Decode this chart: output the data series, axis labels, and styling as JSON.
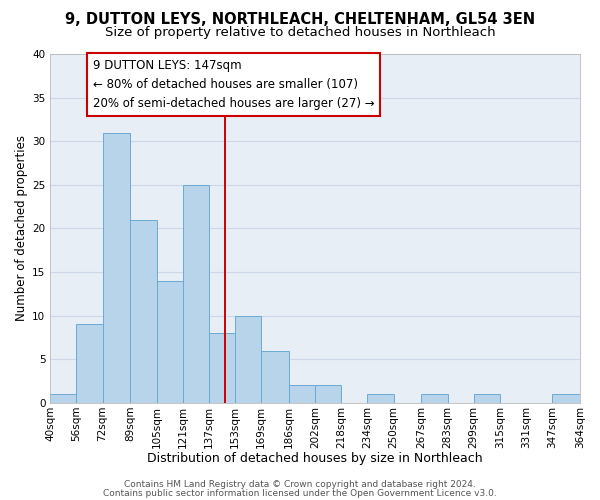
{
  "title_line1": "9, DUTTON LEYS, NORTHLEACH, CHELTENHAM, GL54 3EN",
  "title_line2": "Size of property relative to detached houses in Northleach",
  "xlabel": "Distribution of detached houses by size in Northleach",
  "ylabel": "Number of detached properties",
  "bar_color": "#b8d4ea",
  "bar_edge_color": "#6aaad4",
  "bin_edges": [
    40,
    56,
    72,
    89,
    105,
    121,
    137,
    153,
    169,
    186,
    202,
    218,
    234,
    250,
    267,
    283,
    299,
    315,
    331,
    347,
    364
  ],
  "bin_labels": [
    "40sqm",
    "56sqm",
    "72sqm",
    "89sqm",
    "105sqm",
    "121sqm",
    "137sqm",
    "153sqm",
    "169sqm",
    "186sqm",
    "202sqm",
    "218sqm",
    "234sqm",
    "250sqm",
    "267sqm",
    "283sqm",
    "299sqm",
    "315sqm",
    "331sqm",
    "347sqm",
    "364sqm"
  ],
  "counts": [
    1,
    9,
    31,
    21,
    14,
    25,
    8,
    10,
    6,
    2,
    2,
    0,
    1,
    0,
    1,
    0,
    1,
    0,
    0,
    1
  ],
  "vline_x": 147,
  "vline_color": "#cc0000",
  "ann_line1": "9 DUTTON LEYS: 147sqm",
  "ann_line2": "← 80% of detached houses are smaller (107)",
  "ann_line3": "20% of semi-detached houses are larger (27) →",
  "ylim": [
    0,
    40
  ],
  "yticks": [
    0,
    5,
    10,
    15,
    20,
    25,
    30,
    35,
    40
  ],
  "grid_color": "#ccd8e8",
  "background_color": "#e8eef6",
  "footer_line1": "Contains HM Land Registry data © Crown copyright and database right 2024.",
  "footer_line2": "Contains public sector information licensed under the Open Government Licence v3.0.",
  "title_fontsize": 10.5,
  "subtitle_fontsize": 9.5,
  "xlabel_fontsize": 9,
  "ylabel_fontsize": 8.5,
  "tick_fontsize": 7.5,
  "ann_fontsize": 8.5,
  "footer_fontsize": 6.5
}
